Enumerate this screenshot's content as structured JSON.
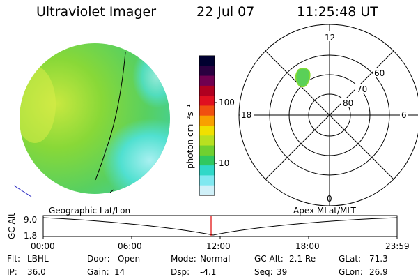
{
  "header": {
    "title": "Ultraviolet Imager",
    "date": "22 Jul 07",
    "time": "11:25:48 UT"
  },
  "colorbar": {
    "label": "photon cm⁻²s⁻¹",
    "ticks": [
      "100",
      "10"
    ],
    "colors": [
      "#000030",
      "#2a0040",
      "#700050",
      "#b00020",
      "#e01020",
      "#f05010",
      "#f8a000",
      "#f0e000",
      "#b8e020",
      "#70d030",
      "#30c860",
      "#30d8c8",
      "#80e8f0",
      "#d0f0f8"
    ]
  },
  "polar": {
    "mlt_labels": {
      "top": "12",
      "left": "18",
      "right": "6",
      "bottom": "0"
    },
    "lat_labels": [
      "60",
      "70",
      "80"
    ]
  },
  "timeline": {
    "left_title": "Geographic Lat/Lon",
    "right_title": "Apex  MLat/MLT",
    "ylabel": "GC Alt",
    "y_ticks": [
      "9.0",
      "1.8"
    ],
    "x_ticks": [
      "00:00",
      "06:00",
      "12:00",
      "18:00",
      "23:59"
    ],
    "marker_color": "#e00000"
  },
  "info": {
    "flt_label": "Flt:",
    "flt_value": "LBHL",
    "ip_label": "IP:",
    "ip_value": "36.0",
    "door_label": "Door:",
    "door_value": "Open",
    "gain_label": "Gain:",
    "gain_value": "14",
    "mode_label": "Mode:",
    "mode_value": "Normal",
    "dsp_label": "Dsp:",
    "dsp_value": "-4.1",
    "gcalt_label": "GC Alt:",
    "gcalt_value": "2.1 Re",
    "seq_label": "Seq:",
    "seq_value": "39",
    "glat_label": "GLat:",
    "glat_value": "71.3",
    "glon_label": "GLon:",
    "glon_value": "26.9"
  }
}
